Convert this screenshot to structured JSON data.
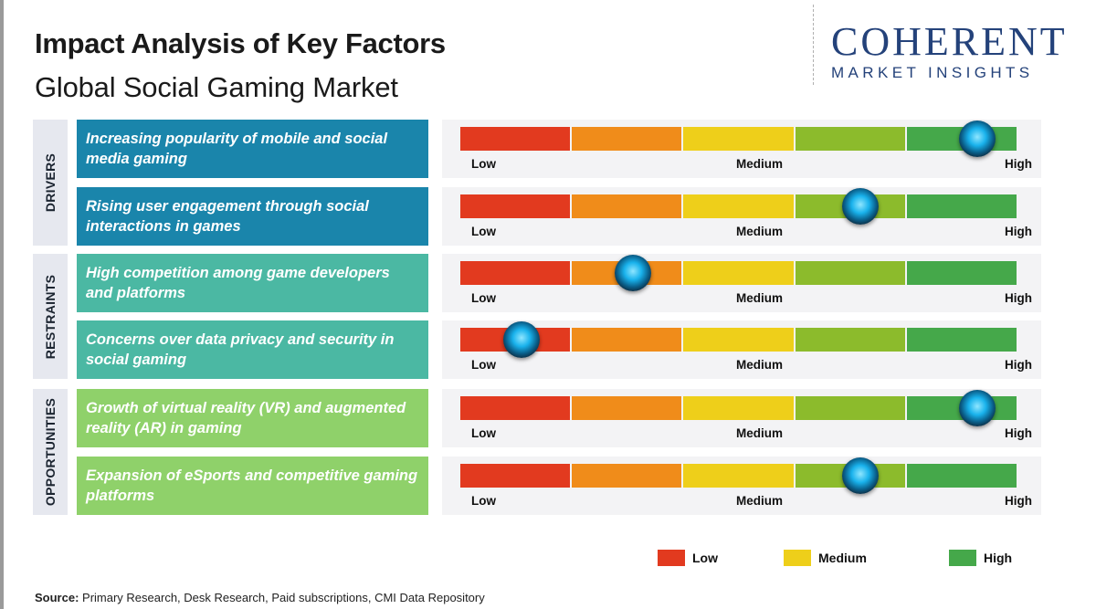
{
  "header": {
    "title": "Impact Analysis of Key Factors",
    "subtitle": "Global Social Gaming Market"
  },
  "logo": {
    "main_text": "COHERENT",
    "sub_text": "MARKET INSIGHTS",
    "globe_icon": "globe-dots-icon",
    "color": "#24427a"
  },
  "chart_data": {
    "type": "table",
    "scale": {
      "labels": [
        "Low",
        "Medium",
        "High"
      ],
      "range": [
        0,
        1
      ],
      "segment_colors": [
        "#e23a1f",
        "#f08c1a",
        "#eecf1a",
        "#8cbb2c",
        "#45a84a"
      ]
    },
    "groups": [
      {
        "name": "DRIVERS",
        "box_color": "#1a85ab",
        "factors": [
          {
            "text": "Increasing popularity of mobile and social media gaming",
            "value": 0.93
          },
          {
            "text": "Rising user engagement through social interactions in games",
            "value": 0.72
          }
        ]
      },
      {
        "name": "RESTRAINTS",
        "box_color": "#4bb8a3",
        "factors": [
          {
            "text": "High competition among game developers and platforms",
            "value": 0.31
          },
          {
            "text": "Concerns over data privacy and security in social gaming",
            "value": 0.11
          }
        ]
      },
      {
        "name": "OPPORTUNITIES",
        "box_color": "#8fd16a",
        "factors": [
          {
            "text": "Growth of virtual reality (VR) and augmented reality (AR) in gaming",
            "value": 0.93
          },
          {
            "text": "Expansion of eSports and competitive gaming platforms",
            "value": 0.72
          }
        ]
      }
    ],
    "legend": [
      {
        "label": "Low",
        "color": "#e23a1f"
      },
      {
        "label": "Medium",
        "color": "#eecf1a"
      },
      {
        "label": "High",
        "color": "#45a84a"
      }
    ]
  },
  "footer": {
    "source_label": "Source:",
    "source_text": "Primary Research, Desk Research, Paid subscriptions, CMI Data Repository"
  }
}
